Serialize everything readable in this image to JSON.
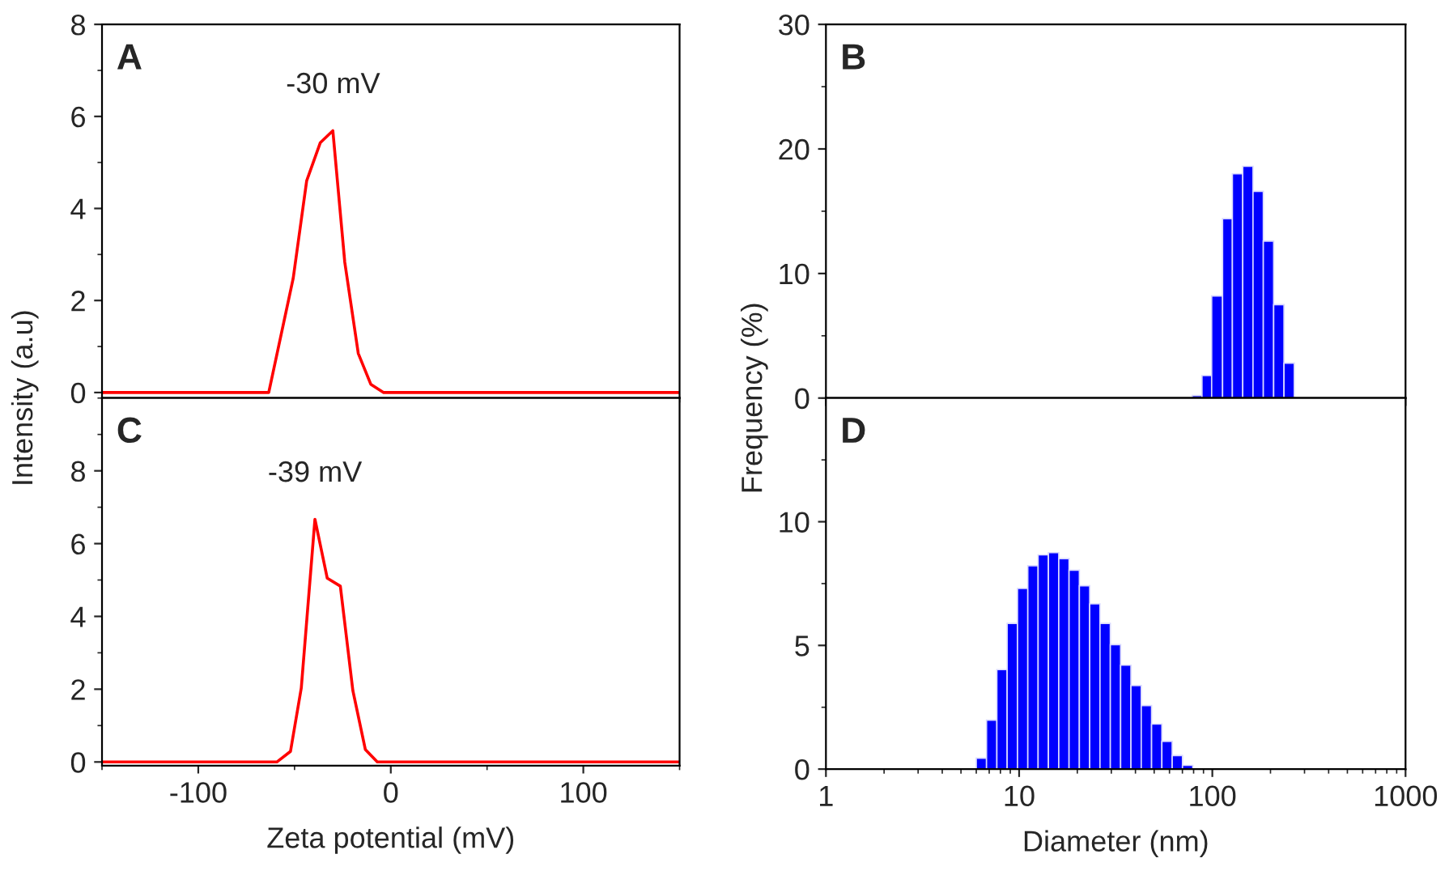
{
  "chart_data": [
    {
      "type": "line",
      "ylabel": "Intensity (a.u)",
      "annotations": [
        "A",
        {
          "text": "-30 mV",
          "x": -30,
          "y": 5.69
        }
      ],
      "x": [
        -150,
        -63.4,
        -50.7,
        -43.7,
        -36.6,
        -30.1,
        -23.9,
        -16.9,
        -10.4,
        -3.7,
        150
      ],
      "series": [
        {
          "color": "#ff0000",
          "values": [
            0,
            0,
            2.48,
            4.6,
            5.43,
            5.69,
            2.83,
            0.85,
            0.18,
            0,
            0
          ]
        }
      ],
      "xlim": [
        -150,
        150
      ],
      "xticks": [
        -100,
        0,
        100
      ],
      "ylim": [
        -0.12,
        8
      ],
      "yticks": [
        0,
        2,
        4,
        6,
        8
      ],
      "tick_labels": "y",
      "marker": "none",
      "line_style": "solid",
      "grid": false
    },
    {
      "type": "histogram",
      "ylabel": "Frequency (%)",
      "annotations": [
        "B"
      ],
      "bins": [
        78.7,
        88.4,
        99.2,
        113.0,
        127.0,
        143.7,
        162.4,
        183.6,
        207.7,
        234.9,
        265.6
      ],
      "values": [
        0.2,
        1.8,
        8.2,
        14.4,
        18.0,
        18.6,
        16.6,
        12.6,
        7.5,
        2.8
      ],
      "color": "#0000ff",
      "log": "x",
      "xlim": [
        1,
        1000
      ],
      "xticks": [
        1,
        10,
        100,
        1000
      ],
      "ylim": [
        0,
        30
      ],
      "yticks": [
        0,
        10,
        20,
        30
      ],
      "tick_labels": "y",
      "grid": false
    },
    {
      "type": "line",
      "xlabel": "Zeta potential (mV)",
      "annotations": [
        "C",
        {
          "text": "-39 mV",
          "x": -39.4,
          "y": 6.67
        }
      ],
      "x": [
        -150,
        -59.2,
        -52.1,
        -46.5,
        -39.4,
        -33.0,
        -26.2,
        -19.7,
        -13.2,
        -7.0,
        150
      ],
      "series": [
        {
          "color": "#ff0000",
          "values": [
            0,
            0,
            0.29,
            2.03,
            6.67,
            5.05,
            4.83,
            1.96,
            0.34,
            0,
            0
          ]
        }
      ],
      "xlim": [
        -150,
        150
      ],
      "xticks": [
        -100,
        0,
        100
      ],
      "ylim": [
        -0.1,
        10
      ],
      "yticks": [
        0,
        2,
        4,
        6,
        8
      ],
      "marker": "none",
      "line_style": "solid",
      "grid": false
    },
    {
      "type": "histogram",
      "xlabel": "Diameter (nm)",
      "annotations": [
        "D"
      ],
      "bins": [
        6.0,
        6.78,
        7.67,
        8.67,
        9.81,
        11.09,
        12.54,
        14.18,
        16.04,
        18.13,
        20.5,
        23.19,
        26.21,
        29.65,
        33.52,
        37.91,
        42.86,
        48.47,
        54.81,
        61.97,
        70.07,
        79.23
      ],
      "values": [
        0.44,
        1.98,
        4.02,
        5.89,
        7.3,
        8.22,
        8.66,
        8.75,
        8.51,
        8.04,
        7.41,
        6.68,
        5.89,
        5.03,
        4.2,
        3.38,
        2.57,
        1.82,
        1.12,
        0.55,
        0.15
      ],
      "color": "#0000ff",
      "log": "x",
      "xlim": [
        1,
        1000
      ],
      "xticks": [
        1,
        10,
        100,
        1000
      ],
      "ylim": [
        0,
        15
      ],
      "yticks": [
        0,
        5,
        10
      ],
      "grid": false
    }
  ]
}
